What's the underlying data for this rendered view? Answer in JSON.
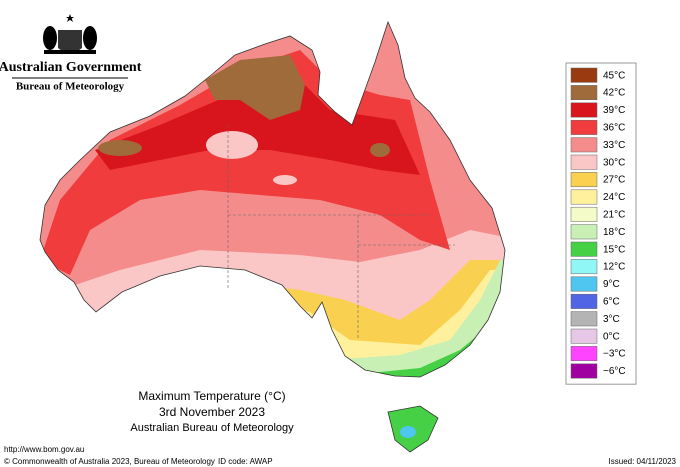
{
  "header": {
    "title": "Australian Government",
    "subtitle": "Bureau of Meteorology"
  },
  "map": {
    "title": "Maximum Temperature (°C)",
    "date": "3rd November 2023",
    "source": "Australian Bureau of Meteorology"
  },
  "legend": {
    "items": [
      {
        "label": "45°C",
        "color": "#9a3a10"
      },
      {
        "label": "42°C",
        "color": "#a06b3a"
      },
      {
        "label": "39°C",
        "color": "#d8141c"
      },
      {
        "label": "36°C",
        "color": "#f03c3c"
      },
      {
        "label": "33°C",
        "color": "#f58c8c"
      },
      {
        "label": "30°C",
        "color": "#fbc6c6"
      },
      {
        "label": "27°C",
        "color": "#f9d050"
      },
      {
        "label": "24°C",
        "color": "#fef09c"
      },
      {
        "label": "21°C",
        "color": "#f4fbc8"
      },
      {
        "label": "18°C",
        "color": "#c8f0b4"
      },
      {
        "label": "15°C",
        "color": "#46d046"
      },
      {
        "label": "12°C",
        "color": "#90f6f6"
      },
      {
        "label": "9°C",
        "color": "#4ec6f0"
      },
      {
        "label": "6°C",
        "color": "#5064e6"
      },
      {
        "label": "3°C",
        "color": "#b4b4b4"
      },
      {
        "label": "0°C",
        "color": "#e6c8e6"
      },
      {
        "label": "−3°C",
        "color": "#ff44ff"
      },
      {
        "label": "−6°C",
        "color": "#a000a0"
      }
    ]
  },
  "footer": {
    "url": "http://www.bom.gov.au",
    "copyright": "© Commonwealth of Australia 2023, Bureau of Meteorology",
    "id_code": "ID code: AWAP",
    "issued": "Issued: 04/11/2023"
  }
}
